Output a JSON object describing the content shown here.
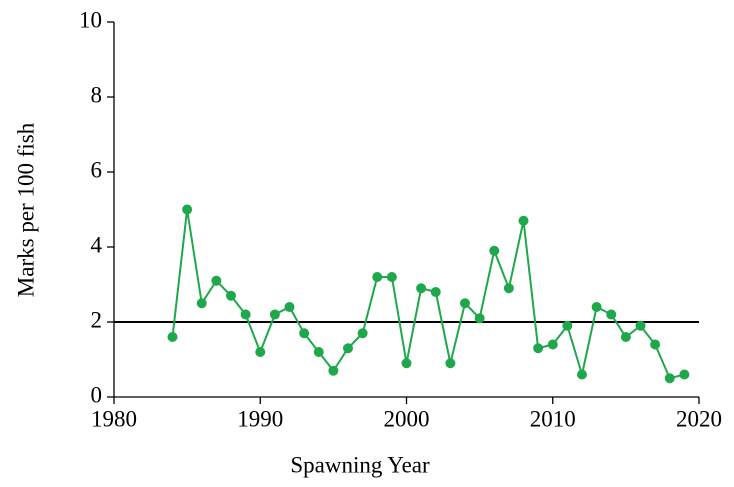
{
  "chart_data": {
    "type": "line",
    "x_label": "Spawning Year",
    "y_label": "Marks per 100 fish",
    "x": [
      1984,
      1985,
      1986,
      1987,
      1988,
      1989,
      1990,
      1991,
      1992,
      1993,
      1994,
      1995,
      1996,
      1997,
      1998,
      1999,
      2000,
      2001,
      2002,
      2003,
      2004,
      2005,
      2006,
      2007,
      2008,
      2009,
      2010,
      2011,
      2012,
      2013,
      2014,
      2015,
      2016,
      2017,
      2018,
      2019
    ],
    "series": [
      {
        "color": "#1fa84b",
        "values": [
          1.6,
          5.0,
          2.5,
          3.1,
          2.7,
          2.2,
          1.2,
          2.2,
          2.4,
          1.7,
          1.2,
          0.7,
          1.3,
          1.7,
          3.2,
          3.2,
          0.9,
          2.9,
          2.8,
          0.9,
          2.5,
          2.1,
          3.9,
          2.9,
          4.7,
          1.3,
          1.4,
          1.9,
          0.6,
          2.4,
          2.2,
          1.6,
          1.9,
          1.4,
          0.5,
          0.6
        ]
      }
    ],
    "reference_line": 2,
    "xlim": [
      1980,
      2020
    ],
    "xticks": [
      1980,
      1990,
      2000,
      2010,
      2020
    ],
    "ylim": [
      0,
      10
    ],
    "yticks": [
      0,
      2,
      4,
      6,
      8,
      10
    ]
  }
}
